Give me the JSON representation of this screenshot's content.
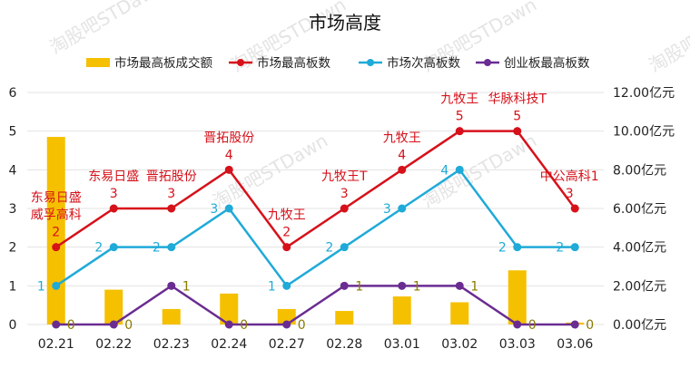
{
  "chart_data": {
    "type": "bar+line",
    "title": "市场高度",
    "categories": [
      "02.21",
      "02.22",
      "02.23",
      "02.24",
      "02.27",
      "02.28",
      "03.01",
      "03.02",
      "03.03",
      "03.06"
    ],
    "legend": {
      "placement": "top",
      "items": [
        {
          "name": "市场最高板成交额",
          "kind": "bar",
          "color": "#F5C000"
        },
        {
          "name": "市场最高板数",
          "kind": "line",
          "color": "#D6111A"
        },
        {
          "name": "市场次高板数",
          "kind": "line",
          "color": "#1FAAD8"
        },
        {
          "name": "创业板最高板数",
          "kind": "line",
          "color": "#6A2C91"
        }
      ]
    },
    "left_axis": {
      "range": [
        0,
        6
      ],
      "ticks": [
        "0",
        "1",
        "2",
        "3",
        "4",
        "5",
        "6"
      ]
    },
    "right_axis": {
      "range": [
        0,
        12
      ],
      "unit": "亿元",
      "ticks": [
        "0.00亿元",
        "2.00亿元",
        "4.00亿元",
        "6.00亿元",
        "8.00亿元",
        "10.00亿元",
        "12.00亿元"
      ]
    },
    "bar_series": {
      "name": "市场最高板成交额",
      "axis": "right",
      "values": [
        9.7,
        1.8,
        0.8,
        1.6,
        0.8,
        0.7,
        1.45,
        1.15,
        2.8,
        0.1
      ]
    },
    "line_series": [
      {
        "name": "市场最高板数",
        "axis": "left",
        "values": [
          2,
          3,
          3,
          4,
          2,
          3,
          4,
          5,
          5,
          3
        ],
        "stock_labels": [
          [
            "东易日盛",
            "威孚高科"
          ],
          [
            "东易日盛"
          ],
          [
            "晋拓股份"
          ],
          [
            "晋拓股份"
          ],
          [
            "九牧王"
          ],
          [
            "九牧王T"
          ],
          [
            "九牧王"
          ],
          [
            "九牧王"
          ],
          [
            "华脉科技T"
          ],
          [
            "中公高科1"
          ]
        ]
      },
      {
        "name": "市场次高板数",
        "axis": "left",
        "values": [
          1,
          2,
          2,
          3,
          1,
          2,
          3,
          4,
          2,
          2
        ]
      },
      {
        "name": "创业板最高板数",
        "axis": "left",
        "values": [
          0,
          0,
          1,
          0,
          0,
          1,
          1,
          1,
          0,
          0
        ]
      }
    ],
    "grid": true,
    "watermark": "淘股吧STDawn"
  }
}
